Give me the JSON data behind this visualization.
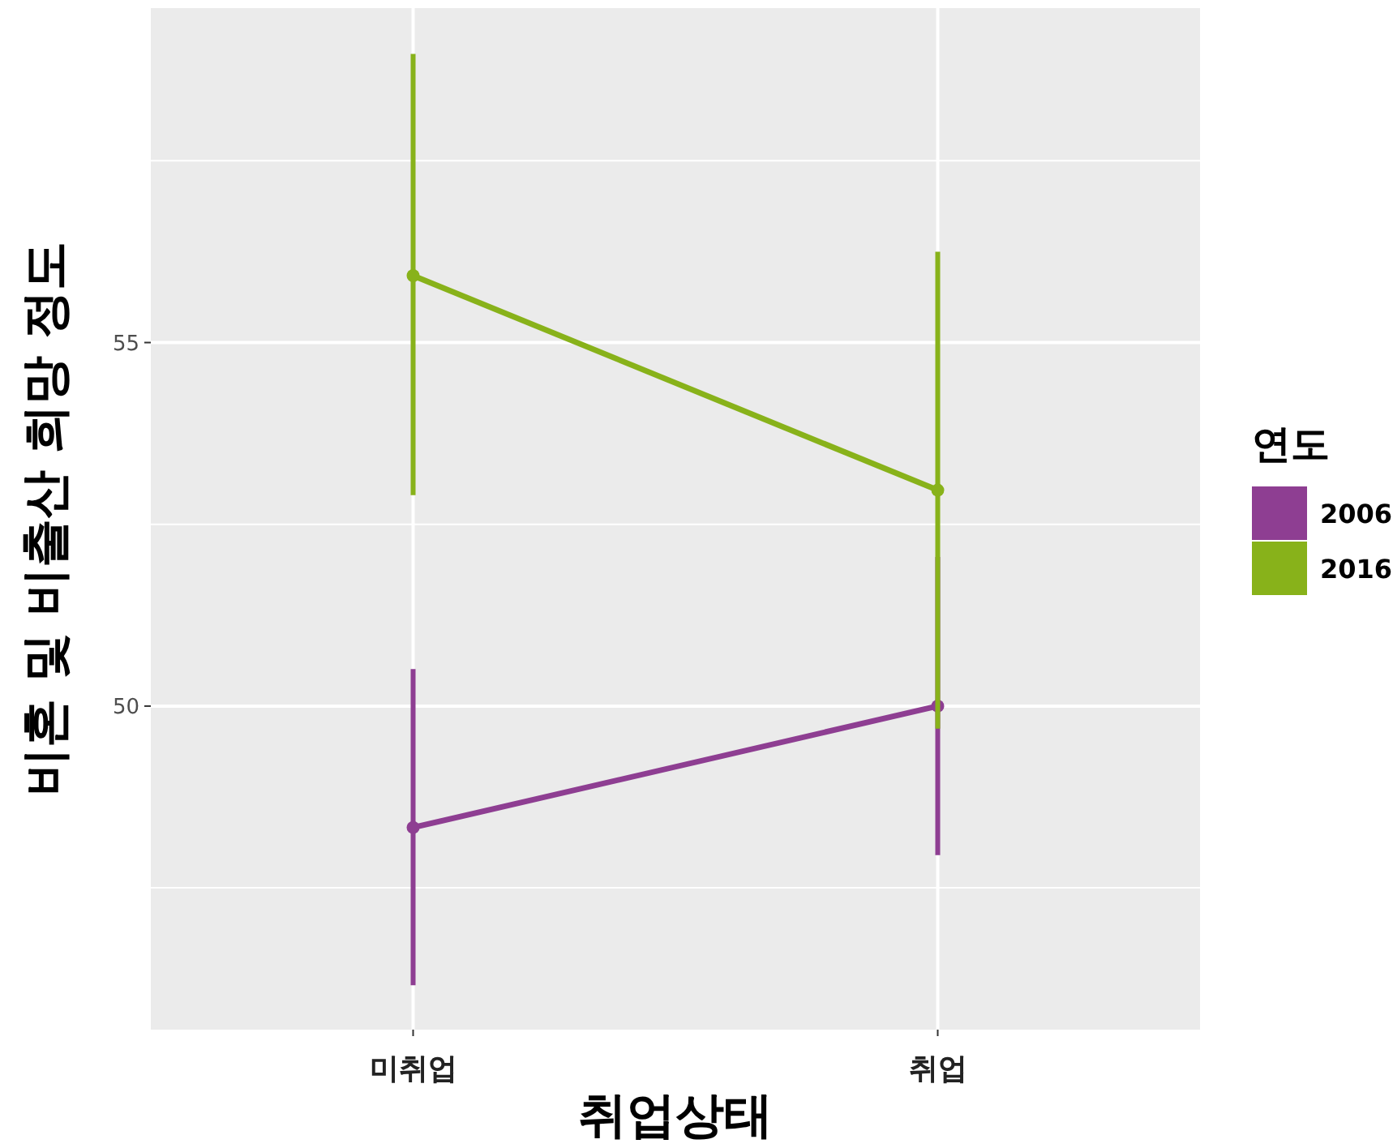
{
  "chart_data": {
    "type": "line",
    "xlabel": "취업상태",
    "ylabel": "비혼 및 비출산 희망 정도",
    "legend_title": "연도",
    "categories": [
      "미취업",
      "취업"
    ],
    "series": [
      {
        "name": "2006",
        "color": "#8e3e92",
        "values": [
          48.33,
          50.0
        ],
        "errors": [
          [
            46.16,
            50.51
          ],
          [
            47.95,
            52.05
          ]
        ]
      },
      {
        "name": "2016",
        "color": "#88b21a",
        "values": [
          55.92,
          52.97
        ],
        "errors": [
          [
            52.9,
            58.97
          ],
          [
            49.69,
            56.25
          ]
        ]
      }
    ],
    "ylim": [
      45.55,
      59.6
    ],
    "yticks": [
      50,
      55
    ],
    "grid": true,
    "legend": "right",
    "marker": "circle",
    "line_style": "solid"
  }
}
